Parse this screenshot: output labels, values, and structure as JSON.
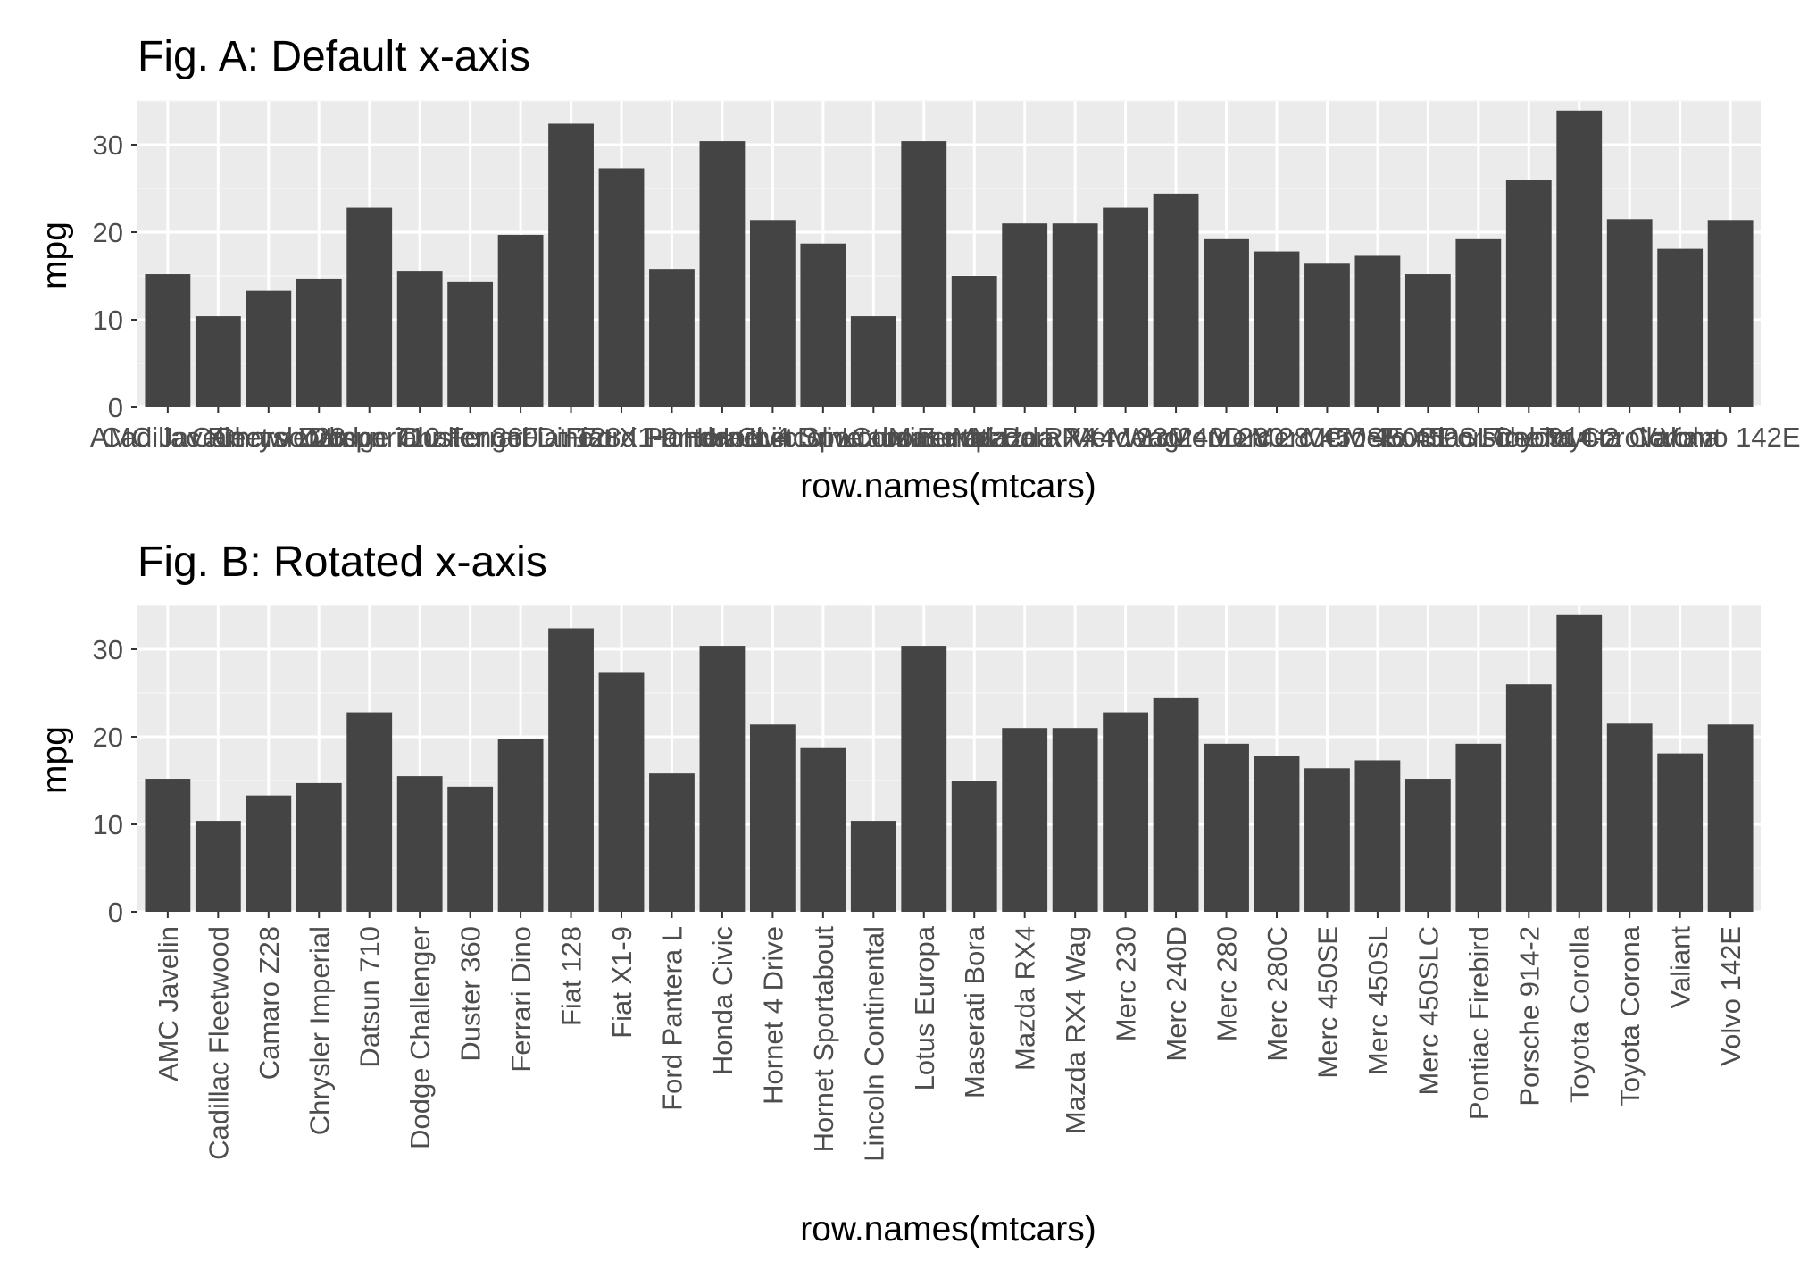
{
  "colors": {
    "panel_background": "#ebebeb",
    "grid_major": "#ffffff",
    "grid_minor": "#f5f5f5",
    "bar_fill": "#444444",
    "tick_text": "#4d4d4d",
    "tick_mark": "#333333",
    "title_text": "#000000"
  },
  "chart_data": [
    {
      "type": "bar",
      "title": "Fig. A: Default x-axis",
      "xlabel": "row.names(mtcars)",
      "ylabel": "mpg",
      "ylim": [
        0,
        35
      ],
      "yticks": [
        0,
        10,
        20,
        30
      ],
      "x_tick_rotation": 0,
      "grid": true,
      "categories": [
        "AMC Javelin",
        "Cadillac Fleetwood",
        "Camaro Z28",
        "Chrysler Imperial",
        "Datsun 710",
        "Dodge Challenger",
        "Duster 360",
        "Ferrari Dino",
        "Fiat 128",
        "Fiat X1-9",
        "Ford Pantera L",
        "Honda Civic",
        "Hornet 4 Drive",
        "Hornet Sportabout",
        "Lincoln Continental",
        "Lotus Europa",
        "Maserati Bora",
        "Mazda RX4",
        "Mazda RX4 Wag",
        "Merc 230",
        "Merc 240D",
        "Merc 280",
        "Merc 280C",
        "Merc 450SE",
        "Merc 450SL",
        "Merc 450SLC",
        "Pontiac Firebird",
        "Porsche 914-2",
        "Toyota Corolla",
        "Toyota Corona",
        "Valiant",
        "Volvo 142E"
      ],
      "values": [
        15.2,
        10.4,
        13.3,
        14.7,
        22.8,
        15.5,
        14.3,
        19.7,
        32.4,
        27.3,
        15.8,
        30.4,
        21.4,
        18.7,
        10.4,
        30.4,
        15.0,
        21.0,
        21.0,
        22.8,
        24.4,
        19.2,
        17.8,
        16.4,
        17.3,
        15.2,
        19.2,
        26.0,
        33.9,
        21.5,
        18.1,
        21.4
      ]
    },
    {
      "type": "bar",
      "title": "Fig. B: Rotated x-axis",
      "xlabel": "row.names(mtcars)",
      "ylabel": "mpg",
      "ylim": [
        0,
        35
      ],
      "yticks": [
        0,
        10,
        20,
        30
      ],
      "x_tick_rotation": 90,
      "grid": true,
      "categories": [
        "AMC Javelin",
        "Cadillac Fleetwood",
        "Camaro Z28",
        "Chrysler Imperial",
        "Datsun 710",
        "Dodge Challenger",
        "Duster 360",
        "Ferrari Dino",
        "Fiat 128",
        "Fiat X1-9",
        "Ford Pantera L",
        "Honda Civic",
        "Hornet 4 Drive",
        "Hornet Sportabout",
        "Lincoln Continental",
        "Lotus Europa",
        "Maserati Bora",
        "Mazda RX4",
        "Mazda RX4 Wag",
        "Merc 230",
        "Merc 240D",
        "Merc 280",
        "Merc 280C",
        "Merc 450SE",
        "Merc 450SL",
        "Merc 450SLC",
        "Pontiac Firebird",
        "Porsche 914-2",
        "Toyota Corolla",
        "Toyota Corona",
        "Valiant",
        "Volvo 142E"
      ],
      "values": [
        15.2,
        10.4,
        13.3,
        14.7,
        22.8,
        15.5,
        14.3,
        19.7,
        32.4,
        27.3,
        15.8,
        30.4,
        21.4,
        18.7,
        10.4,
        30.4,
        15.0,
        21.0,
        21.0,
        22.8,
        24.4,
        19.2,
        17.8,
        16.4,
        17.3,
        15.2,
        19.2,
        26.0,
        33.9,
        21.5,
        18.1,
        21.4
      ]
    }
  ]
}
